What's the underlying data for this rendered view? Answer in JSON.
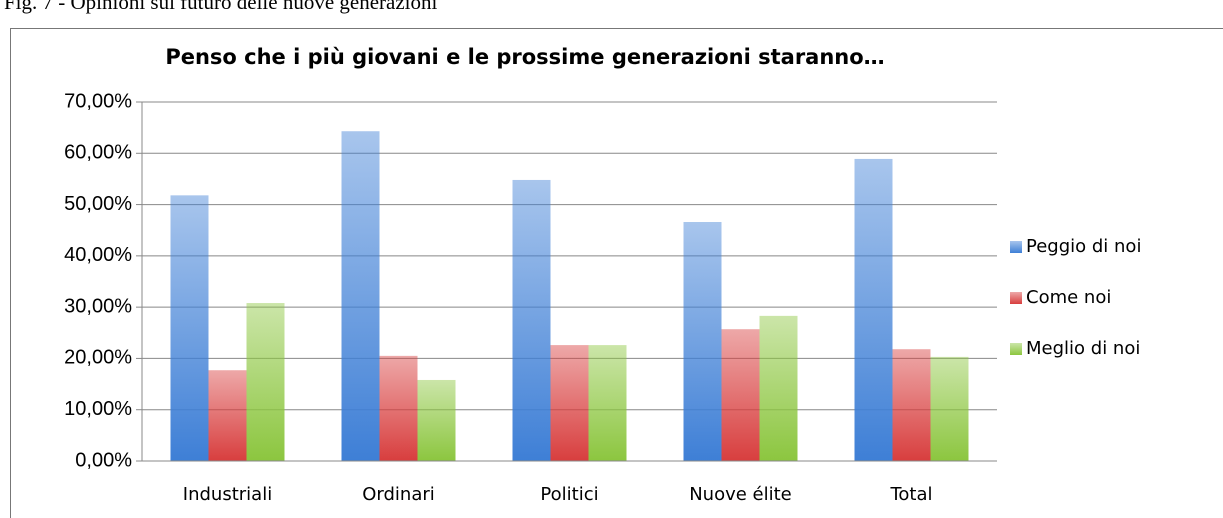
{
  "caption": "Fig. 7 - Opinioni sul futuro delle nuove generazioni",
  "chart_data": {
    "type": "bar",
    "title": "Penso che i più giovani e le prossime generazioni staranno…",
    "categories": [
      "Industriali",
      "Ordinari",
      "Politici",
      "Nuove élite",
      "Total"
    ],
    "series": [
      {
        "name": "Peggio di noi",
        "color": "#3e7fd6",
        "values": [
          51.8,
          64.3,
          54.8,
          46.6,
          58.9
        ]
      },
      {
        "name": "Come noi",
        "color": "#d83e3e",
        "values": [
          17.7,
          20.5,
          22.6,
          25.7,
          21.8
        ]
      },
      {
        "name": "Meglio di noi",
        "color": "#8cc63f",
        "values": [
          30.8,
          15.8,
          22.6,
          28.3,
          20.3
        ]
      }
    ],
    "ylim": [
      0,
      70
    ],
    "yticks": [
      {
        "value": 0,
        "label": "0,00%"
      },
      {
        "value": 10,
        "label": "10,00%"
      },
      {
        "value": 20,
        "label": "20,00%"
      },
      {
        "value": 30,
        "label": "30,00%"
      },
      {
        "value": 40,
        "label": "40,00%"
      },
      {
        "value": 50,
        "label": "50,00%"
      },
      {
        "value": 60,
        "label": "60,00%"
      },
      {
        "value": 70,
        "label": "70,00%"
      }
    ],
    "grid": true,
    "legend": "right"
  }
}
